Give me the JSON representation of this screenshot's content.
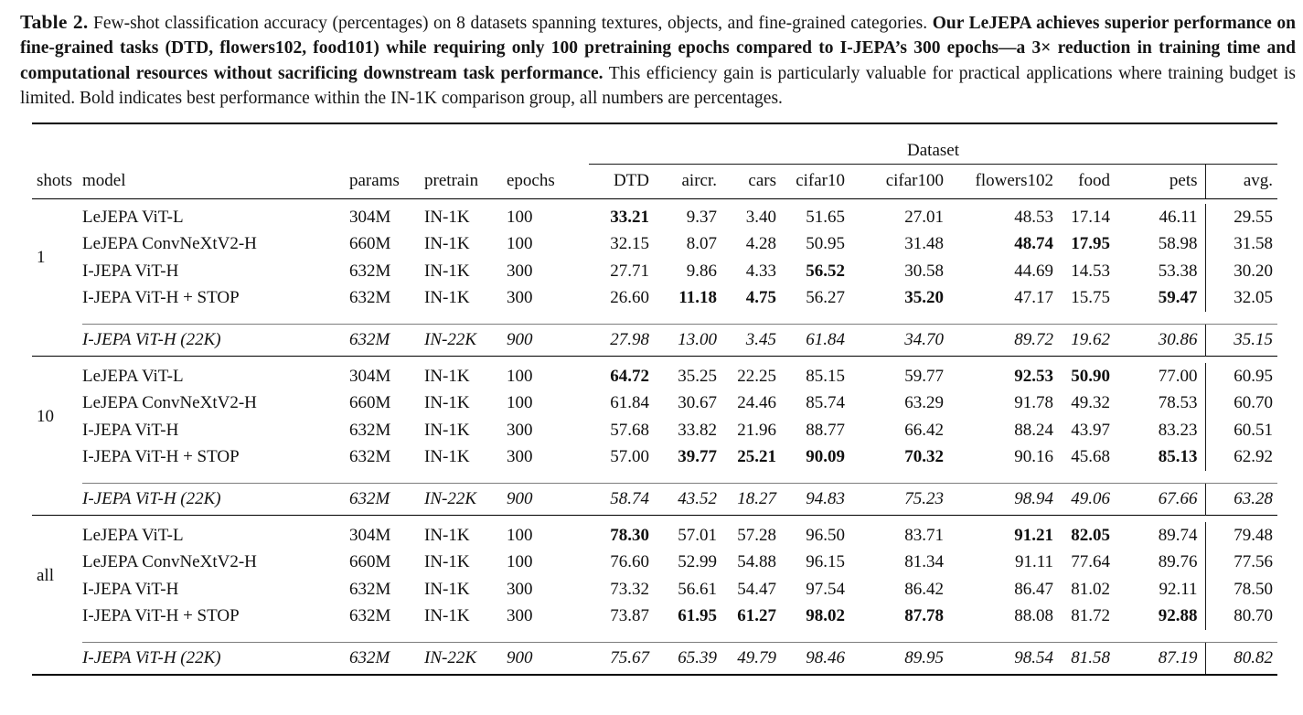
{
  "caption": {
    "label": "Table 2.",
    "lead": "Few-shot classification accuracy (percentages) on 8 datasets spanning textures, objects, and fine-grained categories.",
    "bold": "Our LeJEPA achieves superior performance on fine-grained tasks (DTD, flowers102, food101) while requiring only 100 pretraining epochs compared to I-JEPA’s 300 epochs—a 3× reduction in training time and computational resources without sacrificing downstream task performance.",
    "tail": "This efficiency gain is particularly valuable for practical applications where training budget is limited. Bold indicates best performance within the IN-1K comparison group, all numbers are percentages."
  },
  "table": {
    "dataset_header": "Dataset",
    "columns": [
      "shots",
      "model",
      "params",
      "pretrain",
      "epochs",
      "DTD",
      "aircr.",
      "cars",
      "cifar10",
      "cifar100",
      "flowers102",
      "food",
      "pets",
      "avg."
    ],
    "groups": [
      {
        "shots": "1",
        "rows": [
          {
            "model": "LeJEPA ViT-L",
            "params": "304M",
            "pretrain": "IN-1K",
            "epochs": "100",
            "scores": [
              "33.21",
              "9.37",
              "3.40",
              "51.65",
              "27.01",
              "48.53",
              "17.14",
              "46.11"
            ],
            "avg": "29.55",
            "bold_scores": [
              0
            ]
          },
          {
            "model": "LeJEPA ConvNeXtV2-H",
            "params": "660M",
            "pretrain": "IN-1K",
            "epochs": "100",
            "scores": [
              "32.15",
              "8.07",
              "4.28",
              "50.95",
              "31.48",
              "48.74",
              "17.95",
              "58.98"
            ],
            "avg": "31.58",
            "bold_scores": [
              5,
              6
            ]
          },
          {
            "model": "I-JEPA ViT-H",
            "params": "632M",
            "pretrain": "IN-1K",
            "epochs": "300",
            "scores": [
              "27.71",
              "9.86",
              "4.33",
              "56.52",
              "30.58",
              "44.69",
              "14.53",
              "53.38"
            ],
            "avg": "30.20",
            "bold_scores": [
              3
            ]
          },
          {
            "model": "I-JEPA ViT-H + STOP",
            "params": "632M",
            "pretrain": "IN-1K",
            "epochs": "300",
            "scores": [
              "26.60",
              "11.18",
              "4.75",
              "56.27",
              "35.20",
              "47.17",
              "15.75",
              "59.47"
            ],
            "avg": "32.05",
            "bold_scores": [
              1,
              2,
              4,
              7
            ]
          }
        ],
        "ref_row": {
          "model": "I-JEPA ViT-H (22K)",
          "params": "632M",
          "pretrain": "IN-22K",
          "epochs": "900",
          "scores": [
            "27.98",
            "13.00",
            "3.45",
            "61.84",
            "34.70",
            "89.72",
            "19.62",
            "30.86"
          ],
          "avg": "35.15"
        }
      },
      {
        "shots": "10",
        "rows": [
          {
            "model": "LeJEPA ViT-L",
            "params": "304M",
            "pretrain": "IN-1K",
            "epochs": "100",
            "scores": [
              "64.72",
              "35.25",
              "22.25",
              "85.15",
              "59.77",
              "92.53",
              "50.90",
              "77.00"
            ],
            "avg": "60.95",
            "bold_scores": [
              0,
              5,
              6
            ]
          },
          {
            "model": "LeJEPA ConvNeXtV2-H",
            "params": "660M",
            "pretrain": "IN-1K",
            "epochs": "100",
            "scores": [
              "61.84",
              "30.67",
              "24.46",
              "85.74",
              "63.29",
              "91.78",
              "49.32",
              "78.53"
            ],
            "avg": "60.70",
            "bold_scores": []
          },
          {
            "model": "I-JEPA ViT-H",
            "params": "632M",
            "pretrain": "IN-1K",
            "epochs": "300",
            "scores": [
              "57.68",
              "33.82",
              "21.96",
              "88.77",
              "66.42",
              "88.24",
              "43.97",
              "83.23"
            ],
            "avg": "60.51",
            "bold_scores": []
          },
          {
            "model": "I-JEPA ViT-H + STOP",
            "params": "632M",
            "pretrain": "IN-1K",
            "epochs": "300",
            "scores": [
              "57.00",
              "39.77",
              "25.21",
              "90.09",
              "70.32",
              "90.16",
              "45.68",
              "85.13"
            ],
            "avg": "62.92",
            "bold_scores": [
              1,
              2,
              3,
              4,
              7
            ]
          }
        ],
        "ref_row": {
          "model": "I-JEPA ViT-H (22K)",
          "params": "632M",
          "pretrain": "IN-22K",
          "epochs": "900",
          "scores": [
            "58.74",
            "43.52",
            "18.27",
            "94.83",
            "75.23",
            "98.94",
            "49.06",
            "67.66"
          ],
          "avg": "63.28"
        }
      },
      {
        "shots": "all",
        "rows": [
          {
            "model": "LeJEPA ViT-L",
            "params": "304M",
            "pretrain": "IN-1K",
            "epochs": "100",
            "scores": [
              "78.30",
              "57.01",
              "57.28",
              "96.50",
              "83.71",
              "91.21",
              "82.05",
              "89.74"
            ],
            "avg": "79.48",
            "bold_scores": [
              0,
              5,
              6
            ]
          },
          {
            "model": "LeJEPA ConvNeXtV2-H",
            "params": "660M",
            "pretrain": "IN-1K",
            "epochs": "100",
            "scores": [
              "76.60",
              "52.99",
              "54.88",
              "96.15",
              "81.34",
              "91.11",
              "77.64",
              "89.76"
            ],
            "avg": "77.56",
            "bold_scores": []
          },
          {
            "model": "I-JEPA ViT-H",
            "params": "632M",
            "pretrain": "IN-1K",
            "epochs": "300",
            "scores": [
              "73.32",
              "56.61",
              "54.47",
              "97.54",
              "86.42",
              "86.47",
              "81.02",
              "92.11"
            ],
            "avg": "78.50",
            "bold_scores": []
          },
          {
            "model": "I-JEPA ViT-H + STOP",
            "params": "632M",
            "pretrain": "IN-1K",
            "epochs": "300",
            "scores": [
              "73.87",
              "61.95",
              "61.27",
              "98.02",
              "87.78",
              "88.08",
              "81.72",
              "92.88"
            ],
            "avg": "80.70",
            "bold_scores": [
              1,
              2,
              3,
              4,
              7
            ]
          }
        ],
        "ref_row": {
          "model": "I-JEPA ViT-H (22K)",
          "params": "632M",
          "pretrain": "IN-22K",
          "epochs": "900",
          "scores": [
            "75.67",
            "65.39",
            "49.79",
            "98.46",
            "89.95",
            "98.54",
            "81.58",
            "87.19"
          ],
          "avg": "80.82"
        }
      }
    ]
  }
}
